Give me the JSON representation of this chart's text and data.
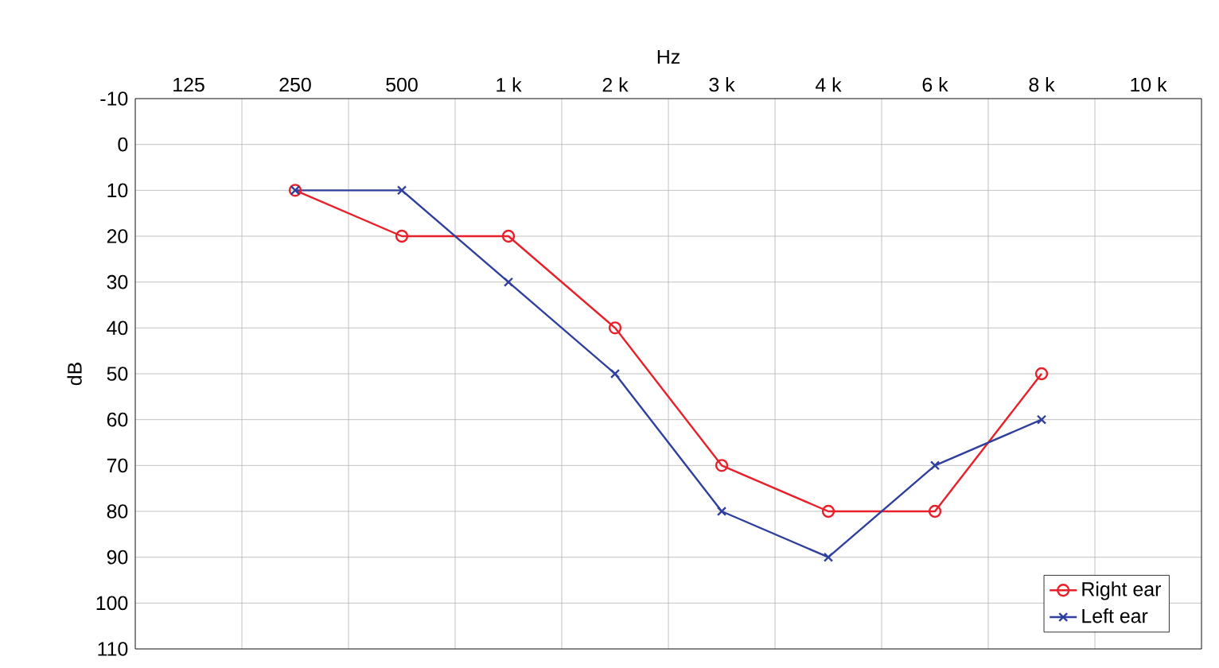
{
  "chart_data": {
    "type": "line",
    "xlabel": "Hz",
    "ylabel": "dB",
    "categories": [
      "125",
      "250",
      "500",
      "1 k",
      "2 k",
      "3 k",
      "4 k",
      "6 k",
      "8 k",
      "10 k"
    ],
    "series": [
      {
        "name": "Right ear",
        "color": "#e8202a",
        "marker": "circle",
        "values": [
          null,
          10,
          20,
          20,
          40,
          70,
          80,
          80,
          50,
          null
        ]
      },
      {
        "name": "Left ear",
        "color": "#2e3f9e",
        "marker": "cross",
        "values": [
          null,
          10,
          10,
          30,
          50,
          80,
          90,
          70,
          60,
          null
        ]
      }
    ],
    "ylim": [
      110,
      -10
    ],
    "yticks": [
      -10,
      0,
      10,
      20,
      30,
      40,
      50,
      60,
      70,
      80,
      90,
      100,
      110
    ],
    "grid": true,
    "legend": "bottom right"
  }
}
